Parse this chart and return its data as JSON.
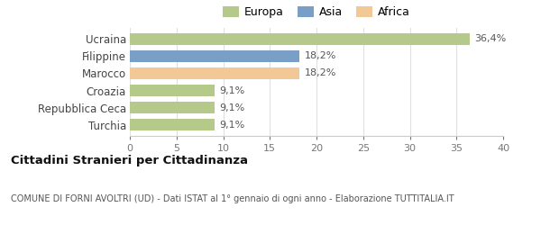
{
  "categories": [
    "Turchia",
    "Repubblica Ceca",
    "Croazia",
    "Marocco",
    "Filippine",
    "Ucraina"
  ],
  "values": [
    9.1,
    9.1,
    9.1,
    18.2,
    18.2,
    36.4
  ],
  "labels": [
    "9,1%",
    "9,1%",
    "9,1%",
    "18,2%",
    "18,2%",
    "36,4%"
  ],
  "colors": [
    "#b5c98a",
    "#b5c98a",
    "#b5c98a",
    "#f2c896",
    "#7a9fc7",
    "#b5c98a"
  ],
  "legend_items": [
    {
      "label": "Europa",
      "color": "#b5c98a"
    },
    {
      "label": "Asia",
      "color": "#7a9fc7"
    },
    {
      "label": "Africa",
      "color": "#f2c896"
    }
  ],
  "xlim": [
    0,
    40
  ],
  "xticks": [
    0,
    5,
    10,
    15,
    20,
    25,
    30,
    35,
    40
  ],
  "title_bold": "Cittadini Stranieri per Cittadinanza",
  "subtitle": "COMUNE DI FORNI AVOLTRI (UD) - Dati ISTAT al 1° gennaio di ogni anno - Elaborazione TUTTITALIA.IT",
  "background_color": "#ffffff",
  "bar_height": 0.72
}
